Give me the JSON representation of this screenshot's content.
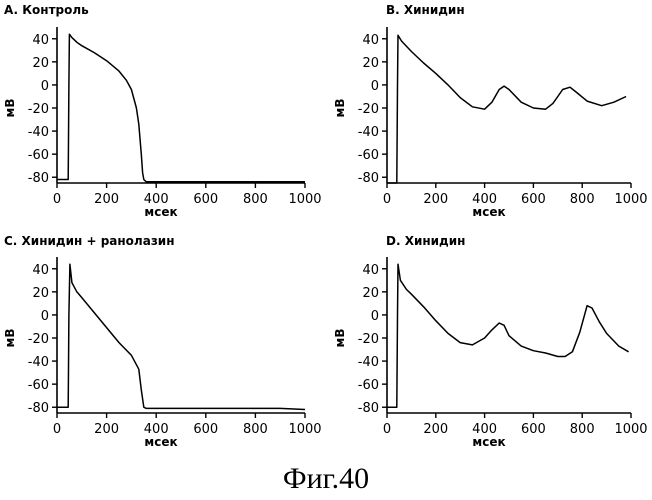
{
  "figure": {
    "caption": "Фиг.40"
  },
  "chart_data": [
    {
      "type": "line",
      "title": "A. Контроль",
      "xlabel": "мсек",
      "ylabel": "мВ",
      "xlim": [
        0,
        1000
      ],
      "ylim": [
        -85,
        45
      ],
      "xticks": [
        0,
        200,
        400,
        600,
        800,
        1000
      ],
      "yticks": [
        40,
        20,
        0,
        -20,
        -40,
        -60,
        -80
      ],
      "grid": false,
      "series": [
        {
          "x": [
            0,
            45,
            48,
            50,
            60,
            80,
            100,
            150,
            200,
            250,
            280,
            300,
            320,
            330,
            340,
            345,
            350,
            355,
            360,
            380,
            400,
            500,
            600,
            700,
            800,
            900,
            1000
          ],
          "y": [
            -82,
            -82,
            0,
            44,
            41,
            37,
            34,
            28,
            21,
            12,
            4,
            -4,
            -20,
            -34,
            -60,
            -76,
            -82,
            -83,
            -84,
            -84,
            -84,
            -84,
            -84,
            -84,
            -84,
            -84,
            -84
          ]
        }
      ]
    },
    {
      "type": "line",
      "title": "B. Хинидин",
      "xlabel": "мсек",
      "ylabel": "мВ",
      "xlim": [
        0,
        1000
      ],
      "ylim": [
        -85,
        45
      ],
      "xticks": [
        0,
        200,
        400,
        600,
        800,
        1000
      ],
      "yticks": [
        40,
        20,
        0,
        -20,
        -40,
        -60,
        -80
      ],
      "grid": false,
      "series": [
        {
          "x": [
            0,
            40,
            43,
            45,
            60,
            100,
            150,
            200,
            250,
            300,
            350,
            400,
            430,
            460,
            480,
            500,
            550,
            600,
            650,
            680,
            720,
            750,
            780,
            820,
            880,
            930,
            980
          ],
          "y": [
            -85,
            -85,
            0,
            43,
            38,
            29,
            19,
            10,
            0,
            -11,
            -19,
            -21,
            -15,
            -4,
            -1,
            -4,
            -15,
            -20,
            -21,
            -16,
            -4,
            -2,
            -7,
            -14,
            -18,
            -15,
            -10
          ]
        }
      ]
    },
    {
      "type": "line",
      "title": "C. Хинидин + ранолазин",
      "xlabel": "мсек",
      "ylabel": "мВ",
      "xlim": [
        0,
        1000
      ],
      "ylim": [
        -85,
        45
      ],
      "xticks": [
        0,
        200,
        400,
        600,
        800,
        1000
      ],
      "yticks": [
        40,
        20,
        0,
        -20,
        -40,
        -60,
        -80
      ],
      "grid": false,
      "series": [
        {
          "x": [
            0,
            45,
            48,
            52,
            60,
            80,
            100,
            150,
            200,
            250,
            300,
            330,
            340,
            350,
            360,
            380,
            400,
            500,
            600,
            700,
            800,
            900,
            1000
          ],
          "y": [
            -80,
            -80,
            0,
            44,
            28,
            20,
            15,
            2,
            -11,
            -24,
            -35,
            -47,
            -65,
            -80,
            -81,
            -81,
            -81,
            -81,
            -81,
            -81,
            -81,
            -81,
            -82
          ]
        }
      ]
    },
    {
      "type": "line",
      "title": "D. Хинидин",
      "xlabel": "мсек",
      "ylabel": "мВ",
      "xlim": [
        0,
        1000
      ],
      "ylim": [
        -85,
        45
      ],
      "xticks": [
        0,
        200,
        400,
        600,
        800,
        1000
      ],
      "yticks": [
        40,
        20,
        0,
        -20,
        -40,
        -60,
        -80
      ],
      "grid": false,
      "series": [
        {
          "x": [
            0,
            40,
            43,
            45,
            55,
            80,
            100,
            150,
            200,
            250,
            300,
            350,
            400,
            430,
            460,
            480,
            500,
            550,
            600,
            650,
            700,
            730,
            760,
            790,
            820,
            840,
            870,
            900,
            950,
            990
          ],
          "y": [
            -80,
            -80,
            0,
            44,
            30,
            22,
            18,
            7,
            -5,
            -16,
            -24,
            -26,
            -20,
            -13,
            -7,
            -9,
            -18,
            -27,
            -31,
            -33,
            -36,
            -36,
            -32,
            -15,
            8,
            6,
            -6,
            -16,
            -27,
            -32
          ]
        }
      ]
    }
  ]
}
